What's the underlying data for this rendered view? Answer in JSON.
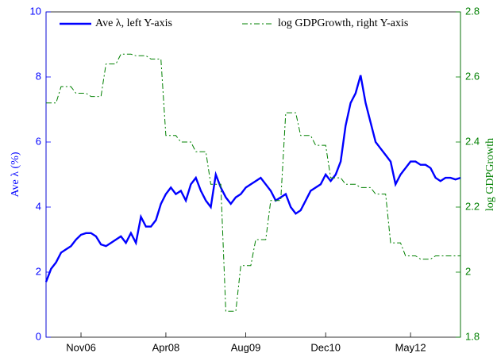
{
  "chart_data": {
    "type": "line",
    "x": [
      "2006-04",
      "2006-05",
      "2006-06",
      "2006-07",
      "2006-08",
      "2006-09",
      "2006-10",
      "2006-11",
      "2006-12",
      "2007-01",
      "2007-02",
      "2007-03",
      "2007-04",
      "2007-05",
      "2007-06",
      "2007-07",
      "2007-08",
      "2007-09",
      "2007-10",
      "2007-11",
      "2007-12",
      "2008-01",
      "2008-02",
      "2008-03",
      "2008-04",
      "2008-05",
      "2008-06",
      "2008-07",
      "2008-08",
      "2008-09",
      "2008-10",
      "2008-11",
      "2008-12",
      "2009-01",
      "2009-02",
      "2009-03",
      "2009-04",
      "2009-05",
      "2009-06",
      "2009-07",
      "2009-08",
      "2009-09",
      "2009-10",
      "2009-11",
      "2009-12",
      "2010-01",
      "2010-02",
      "2010-03",
      "2010-04",
      "2010-05",
      "2010-06",
      "2010-07",
      "2010-08",
      "2010-09",
      "2010-10",
      "2010-11",
      "2010-12",
      "2011-01",
      "2011-02",
      "2011-03",
      "2011-04",
      "2011-05",
      "2011-06",
      "2011-07",
      "2011-08",
      "2011-09",
      "2011-10",
      "2011-11",
      "2011-12",
      "2012-01",
      "2012-02",
      "2012-03",
      "2012-04",
      "2012-05",
      "2012-06",
      "2012-07",
      "2012-08",
      "2012-09",
      "2012-10",
      "2012-11",
      "2012-12",
      "2013-01",
      "2013-02",
      "2013-03"
    ],
    "series": [
      {
        "name": "Ave λ, left Y-axis",
        "color": "#0000ff",
        "axis": "y",
        "values": [
          1.7,
          2.1,
          2.3,
          2.6,
          2.7,
          2.8,
          3.0,
          3.15,
          3.2,
          3.2,
          3.1,
          2.85,
          2.8,
          2.9,
          3.0,
          3.1,
          2.9,
          3.2,
          2.9,
          3.7,
          3.4,
          3.4,
          3.6,
          4.1,
          4.4,
          4.6,
          4.4,
          4.5,
          4.2,
          4.7,
          4.9,
          4.5,
          4.2,
          4.0,
          5.0,
          4.6,
          4.3,
          4.1,
          4.3,
          4.4,
          4.6,
          4.7,
          4.8,
          4.9,
          4.7,
          4.5,
          4.2,
          4.3,
          4.4,
          4.0,
          3.8,
          3.9,
          4.2,
          4.5,
          4.6,
          4.7,
          5.0,
          4.8,
          5.0,
          5.4,
          6.5,
          7.2,
          7.5,
          8.05,
          7.2,
          6.6,
          6.0,
          5.8,
          5.6,
          5.4,
          4.7,
          5.0,
          5.2,
          5.4,
          5.4,
          5.3,
          5.3,
          5.2,
          4.9,
          4.8,
          4.9,
          4.9,
          4.85,
          4.9
        ]
      },
      {
        "name": "log GDPGrowth, right Y-axis",
        "color": "#008000",
        "axis": "y2",
        "values": [
          2.52,
          2.52,
          2.52,
          2.57,
          2.57,
          2.57,
          2.55,
          2.55,
          2.55,
          2.54,
          2.54,
          2.54,
          2.64,
          2.64,
          2.64,
          2.67,
          2.67,
          2.67,
          2.665,
          2.665,
          2.665,
          2.655,
          2.655,
          2.655,
          2.42,
          2.42,
          2.42,
          2.4,
          2.4,
          2.4,
          2.37,
          2.37,
          2.37,
          2.27,
          2.27,
          2.27,
          1.88,
          1.88,
          1.88,
          2.02,
          2.02,
          2.02,
          2.1,
          2.1,
          2.1,
          2.22,
          2.22,
          2.22,
          2.49,
          2.49,
          2.49,
          2.42,
          2.42,
          2.42,
          2.39,
          2.39,
          2.39,
          2.29,
          2.29,
          2.29,
          2.27,
          2.27,
          2.27,
          2.26,
          2.26,
          2.26,
          2.24,
          2.24,
          2.24,
          2.09,
          2.09,
          2.09,
          2.05,
          2.05,
          2.05,
          2.04,
          2.04,
          2.04,
          2.05,
          2.05,
          2.05,
          2.05,
          2.05,
          2.05
        ]
      }
    ],
    "y_label": "Ave λ (%)",
    "y2_label": "log GDPGrowth",
    "xlim": [
      "2006-04",
      "2013-03"
    ],
    "xticks": [
      {
        "value": "2006-11",
        "label": "Nov06"
      },
      {
        "value": "2008-04",
        "label": "Apr08"
      },
      {
        "value": "2009-08",
        "label": "Aug09"
      },
      {
        "value": "2010-12",
        "label": "Dec10"
      },
      {
        "value": "2012-05",
        "label": "May12"
      }
    ],
    "ylim": [
      0,
      10
    ],
    "yticks": [
      0,
      2,
      4,
      6,
      8,
      10
    ],
    "y2lim": [
      1.8,
      2.8
    ],
    "y2ticks": [
      1.8,
      2,
      2.2,
      2.4,
      2.6,
      2.8
    ],
    "legend": "top"
  }
}
